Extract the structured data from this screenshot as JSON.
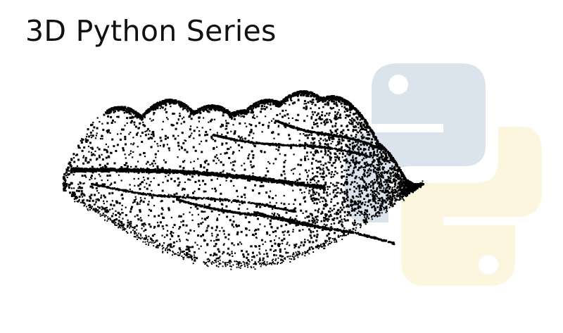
{
  "title": "3D Python Series",
  "logo": {
    "icon": "python-logo-icon",
    "color_top": "#dbe3ec",
    "color_bottom": "#fdf6df",
    "eye_color": "#ffffff"
  },
  "point_cloud": {
    "icon": "point-cloud-illustration",
    "color": "#000000"
  }
}
